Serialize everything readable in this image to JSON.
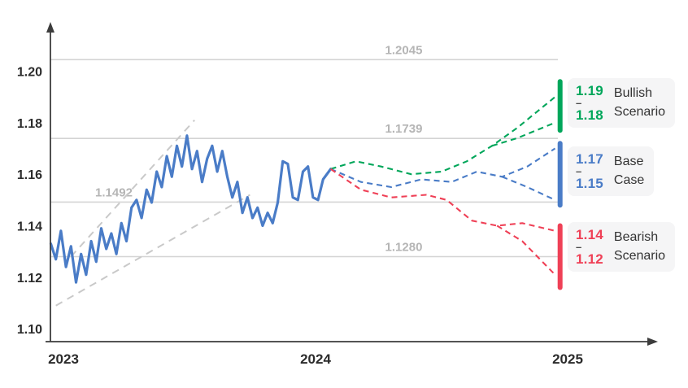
{
  "chart_data": {
    "type": "line",
    "range_dash": "–",
    "colors": {
      "grid": "#d4d4d4",
      "grid_label": "#b5b5b5",
      "channel": "#c9c9c9",
      "axis": "#3c3c3c",
      "axis_label": "#2b2b2b",
      "history": "#4a7cc7"
    },
    "x_axis": {
      "ticks": [
        {
          "label": "2023",
          "value": 2023
        },
        {
          "label": "2024",
          "value": 2024
        },
        {
          "label": "2025",
          "value": 2025
        }
      ]
    },
    "y_axis": {
      "range": [
        1.095,
        1.215
      ],
      "ticks": [
        {
          "label": "1.10",
          "value": 1.1
        },
        {
          "label": "1.12",
          "value": 1.12
        },
        {
          "label": "1.14",
          "value": 1.14
        },
        {
          "label": "1.16",
          "value": 1.16
        },
        {
          "label": "1.18",
          "value": 1.18
        },
        {
          "label": "1.20",
          "value": 1.2
        }
      ]
    },
    "gridlines": [
      {
        "label": "1.2045",
        "value": 1.2045,
        "label_t": 2024.35
      },
      {
        "label": "1.1739",
        "value": 1.1739,
        "label_t": 2024.35
      },
      {
        "label": "1.1492",
        "value": 1.1492,
        "label_t": 2023.2
      },
      {
        "label": "1.1280",
        "value": 1.128,
        "label_t": 2024.35
      }
    ],
    "channel": {
      "lines": [
        [
          [
            2023.03,
            1.128
          ],
          [
            2023.52,
            1.181
          ]
        ],
        [
          [
            2022.97,
            1.109
          ],
          [
            2023.74,
            1.152
          ]
        ]
      ]
    },
    "history": {
      "name": "historical-rate",
      "points": [
        [
          2022.95,
          1.133
        ],
        [
          2022.97,
          1.127
        ],
        [
          2022.99,
          1.138
        ],
        [
          2023.01,
          1.124
        ],
        [
          2023.03,
          1.132
        ],
        [
          2023.05,
          1.118
        ],
        [
          2023.07,
          1.129
        ],
        [
          2023.09,
          1.121
        ],
        [
          2023.11,
          1.134
        ],
        [
          2023.13,
          1.126
        ],
        [
          2023.15,
          1.139
        ],
        [
          2023.17,
          1.131
        ],
        [
          2023.19,
          1.137
        ],
        [
          2023.21,
          1.129
        ],
        [
          2023.23,
          1.141
        ],
        [
          2023.25,
          1.134
        ],
        [
          2023.27,
          1.147
        ],
        [
          2023.29,
          1.15
        ],
        [
          2023.31,
          1.143
        ],
        [
          2023.33,
          1.154
        ],
        [
          2023.35,
          1.149
        ],
        [
          2023.37,
          1.161
        ],
        [
          2023.39,
          1.155
        ],
        [
          2023.41,
          1.167
        ],
        [
          2023.43,
          1.159
        ],
        [
          2023.45,
          1.171
        ],
        [
          2023.47,
          1.163
        ],
        [
          2023.49,
          1.175
        ],
        [
          2023.51,
          1.162
        ],
        [
          2023.53,
          1.169
        ],
        [
          2023.55,
          1.157
        ],
        [
          2023.57,
          1.166
        ],
        [
          2023.59,
          1.171
        ],
        [
          2023.61,
          1.161
        ],
        [
          2023.63,
          1.169
        ],
        [
          2023.65,
          1.159
        ],
        [
          2023.67,
          1.151
        ],
        [
          2023.69,
          1.157
        ],
        [
          2023.71,
          1.145
        ],
        [
          2023.73,
          1.151
        ],
        [
          2023.75,
          1.143
        ],
        [
          2023.77,
          1.147
        ],
        [
          2023.79,
          1.14
        ],
        [
          2023.81,
          1.145
        ],
        [
          2023.83,
          1.141
        ],
        [
          2023.85,
          1.149
        ],
        [
          2023.87,
          1.165
        ],
        [
          2023.89,
          1.164
        ],
        [
          2023.91,
          1.151
        ],
        [
          2023.93,
          1.15
        ],
        [
          2023.95,
          1.161
        ],
        [
          2023.97,
          1.163
        ],
        [
          2023.99,
          1.151
        ],
        [
          2024.01,
          1.15
        ],
        [
          2024.03,
          1.158
        ],
        [
          2024.06,
          1.162
        ]
      ]
    },
    "scenarios": [
      {
        "id": "bullish",
        "label_lines": [
          "Bullish",
          "Scenario"
        ],
        "range_high": "1.19",
        "range_low": "1.18",
        "color": "#00a65a",
        "bar": {
          "t": 2024.97,
          "from": 1.177,
          "to": 1.196
        },
        "line_main": [
          [
            2024.06,
            1.162
          ],
          [
            2024.16,
            1.165
          ],
          [
            2024.26,
            1.163
          ],
          [
            2024.38,
            1.16
          ],
          [
            2024.5,
            1.161
          ],
          [
            2024.6,
            1.165
          ],
          [
            2024.7,
            1.171
          ],
          [
            2024.8,
            1.178
          ],
          [
            2024.95,
            1.19
          ]
        ],
        "line_fork": [
          [
            2024.7,
            1.171
          ],
          [
            2024.8,
            1.174
          ],
          [
            2024.95,
            1.18
          ]
        ]
      },
      {
        "id": "base",
        "label_lines": [
          "Base",
          "Case"
        ],
        "range_high": "1.17",
        "range_low": "1.15",
        "color": "#4a7cc7",
        "bar": {
          "t": 2024.97,
          "from": 1.148,
          "to": 1.172
        },
        "line_main": [
          [
            2024.06,
            1.162
          ],
          [
            2024.18,
            1.157
          ],
          [
            2024.3,
            1.155
          ],
          [
            2024.42,
            1.158
          ],
          [
            2024.54,
            1.157
          ],
          [
            2024.64,
            1.161
          ],
          [
            2024.74,
            1.159
          ],
          [
            2024.84,
            1.163
          ],
          [
            2024.95,
            1.17
          ]
        ],
        "line_fork": [
          [
            2024.74,
            1.159
          ],
          [
            2024.84,
            1.155
          ],
          [
            2024.95,
            1.15
          ]
        ]
      },
      {
        "id": "bearish",
        "label_lines": [
          "Bearish",
          "Scenario"
        ],
        "range_high": "1.14",
        "range_low": "1.12",
        "color": "#ef4056",
        "bar": {
          "t": 2024.97,
          "from": 1.116,
          "to": 1.14
        },
        "line_main": [
          [
            2024.06,
            1.162
          ],
          [
            2024.18,
            1.154
          ],
          [
            2024.3,
            1.151
          ],
          [
            2024.44,
            1.152
          ],
          [
            2024.52,
            1.15
          ],
          [
            2024.62,
            1.142
          ],
          [
            2024.72,
            1.14
          ],
          [
            2024.82,
            1.141
          ],
          [
            2024.95,
            1.138
          ]
        ],
        "line_fork": [
          [
            2024.72,
            1.14
          ],
          [
            2024.82,
            1.134
          ],
          [
            2024.95,
            1.121
          ]
        ]
      }
    ]
  }
}
